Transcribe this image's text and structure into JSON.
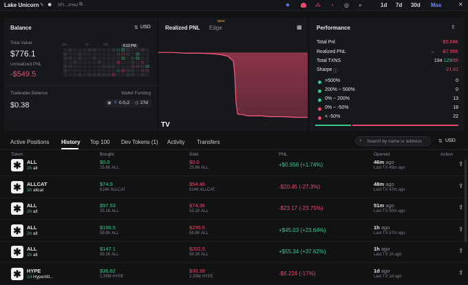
{
  "header": {
    "name": "Lake Unicorn",
    "address": "5Ft...zHez",
    "timeframes": [
      "1d",
      "7d",
      "30d",
      "Max"
    ],
    "selected_timeframe": "Max"
  },
  "balance": {
    "title": "Balance",
    "currency": "USD",
    "total_value_label": "Total Value",
    "total_value": "$776.1",
    "unrealized_label": "Unrealized PNL",
    "unrealized": "-$549.5",
    "tradeable_label": "Tradeable Balance",
    "tradeable": "$0.38",
    "wallet_funding_label": "Wallet Funding",
    "funding_amount": "0.0₂2",
    "funding_age": "27d",
    "heatmap_col_labels": [
      "12s",
      "1s",
      "12s"
    ],
    "heatmap_tooltip": "6:12 PM"
  },
  "pnl": {
    "tab_realized": "Realized PNL",
    "tab_edge": "Edge",
    "new_badge": "NEW",
    "logo": "TV"
  },
  "chart_data": {
    "type": "area",
    "title": "",
    "xlabel": "",
    "ylabel": "",
    "x": [
      0,
      20,
      40,
      60,
      80,
      90,
      100,
      108,
      110,
      112,
      114,
      116,
      118,
      120,
      125,
      130,
      140,
      150,
      160,
      180,
      200,
      215
    ],
    "values": [
      0,
      0,
      -1,
      -1,
      -2,
      -3,
      -5,
      -12,
      -30,
      -70,
      -85,
      -86,
      -86,
      -86,
      -87,
      -88,
      -88,
      -88,
      -89,
      -89,
      -90,
      -90
    ],
    "ylim": [
      -100,
      5
    ]
  },
  "performance": {
    "title": "Performance",
    "rows": [
      {
        "label": "Total Pnl",
        "value": "-$5.54K"
      },
      {
        "label": "Realized PNL",
        "value": "-$7.99K"
      },
      {
        "label": "Total TXNS",
        "value_a": "194",
        "value_b": "129",
        "value_c": "65"
      },
      {
        "label": "Sharpe",
        "value": "-21.61"
      }
    ],
    "buckets": [
      {
        "label": ">500%",
        "count": "0",
        "color": "#3ec98b"
      },
      {
        "label": "200% ~ 500%",
        "count": "0",
        "color": "#3ec98b"
      },
      {
        "label": "0% ~ 200%",
        "count": "13",
        "color": "#3ec98b"
      },
      {
        "label": "0% ~ -50%",
        "count": "18",
        "color": "#ea4b6d"
      },
      {
        "label": "< -50%",
        "count": "22",
        "color": "#ea4b6d"
      }
    ]
  },
  "tabs": [
    "Active Positions",
    "History",
    "Top 100",
    "Dev Tokens (1)",
    "Activity",
    "Transfers"
  ],
  "active_tab": "History",
  "search": {
    "placeholder": "Search by name or address",
    "currency": "USD"
  },
  "table": {
    "headers": [
      "Token",
      "Bought",
      "Sold",
      "PNL",
      "Opened",
      "Action"
    ],
    "rows": [
      {
        "name": "ALL",
        "age": "2h",
        "sub": "all",
        "bought": "$0.0",
        "bought_sub": "25.8K ALL",
        "sold": "$0.0",
        "sold_sub": "25.8K ALL",
        "pnl": "+$0.956 (+1.74%)",
        "pnl_pos": true,
        "opened": "46m",
        "opened_sub": "Last TX 45m ago"
      },
      {
        "name": "ALLCAT",
        "age": "1h",
        "sub": "allcat",
        "bought": "$74.9",
        "bought_sub": "614K ALLCAT",
        "sold": "$54.46",
        "sold_sub": "614K ALLCAT",
        "pnl": "-$20.45 (-27.3%)",
        "pnl_pos": false,
        "opened": "48m",
        "opened_sub": "Last TX 47m ago"
      },
      {
        "name": "ALL",
        "age": "2h",
        "sub": "all",
        "bought": "$97.53",
        "bought_sub": "33.1K ALL",
        "sold": "$74.36",
        "sold_sub": "33.1K ALL",
        "pnl": "-$23.17 (-23.75%)",
        "pnl_pos": false,
        "opened": "51m",
        "opened_sub": "Last TX 50m ago"
      },
      {
        "name": "ALL",
        "age": "2h",
        "sub": "all",
        "bought": "$190.5",
        "bought_sub": "59.8K ALL",
        "sold": "$235.5",
        "sold_sub": "59.8K ALL",
        "pnl": "+$45.03 (+23.64%)",
        "pnl_pos": true,
        "opened": "1h",
        "opened_sub": "Last TX 57m ago"
      },
      {
        "name": "ALL",
        "age": "2h",
        "sub": "all",
        "bought": "$147.1",
        "bought_sub": "99.1K ALL",
        "sold": "$202.5",
        "sold_sub": "99.1K ALL",
        "pnl": "+$55.34 (+37.62%)",
        "pnl_pos": true,
        "opened": "1h",
        "opened_sub": "Last TX 1h ago"
      },
      {
        "name": "HYPE",
        "age": "1d",
        "sub": "Hypertitt...",
        "bought": "$36.62",
        "bought_sub": "2.35M HYPE",
        "sold": "$30.39",
        "sold_sub": "2.35M HYPE",
        "pnl": "-$6.224 (-17%)",
        "pnl_pos": false,
        "opened": "1d",
        "opened_sub": "Last TX 1d ago"
      }
    ],
    "ago": "ago"
  }
}
